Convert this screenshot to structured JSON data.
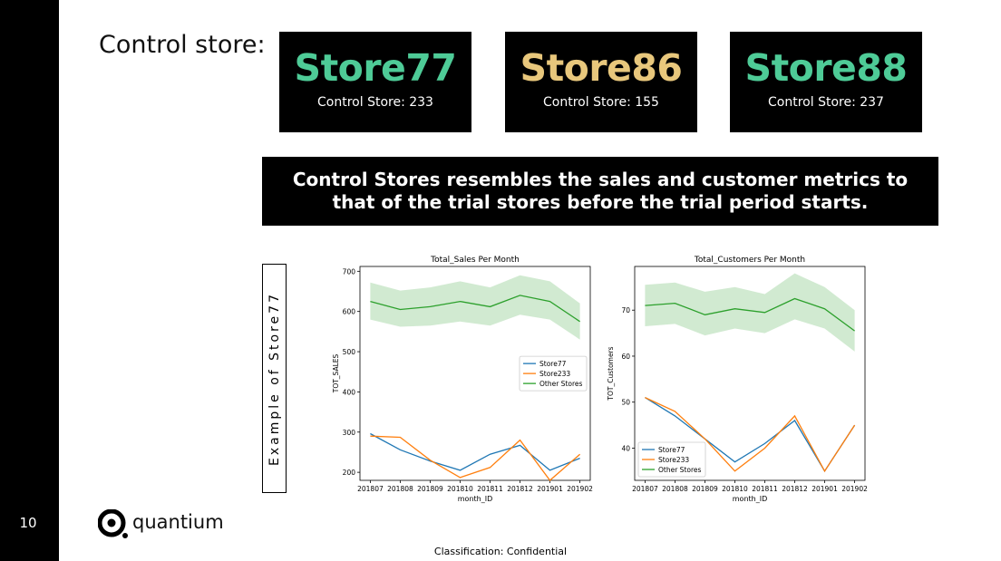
{
  "page_number": "10",
  "heading": "Control store:",
  "stores": [
    {
      "name": "Store77",
      "control": "Control Store: 233",
      "color": "#4ecb97"
    },
    {
      "name": "Store86",
      "control": "Control Store: 155",
      "color": "#e8c77c"
    },
    {
      "name": "Store88",
      "control": "Control Store: 237",
      "color": "#4ecb97"
    }
  ],
  "banner": "Control Stores resembles the sales and customer metrics to that of the trial stores before the trial period starts.",
  "side_label": "Example of Store77",
  "logo_text": "quantium",
  "footer": "Classification: Confidential",
  "chart_data": [
    {
      "type": "line",
      "title": "Total_Sales Per Month",
      "xlabel": "month_ID",
      "ylabel": "TOT_SALES",
      "categories": [
        "201807",
        "201808",
        "201809",
        "201810",
        "201811",
        "201812",
        "201901",
        "201902"
      ],
      "ylim": [
        180,
        712
      ],
      "yticks": [
        200,
        300,
        400,
        500,
        600,
        700
      ],
      "legend": "center-right",
      "series": [
        {
          "name": "Store77",
          "color": "#1f77b4",
          "values": [
            296,
            256,
            228,
            205,
            245,
            267,
            205,
            235
          ]
        },
        {
          "name": "Store233",
          "color": "#ff7f0e",
          "values": [
            290,
            287,
            230,
            187,
            212,
            280,
            180,
            245
          ]
        },
        {
          "name": "Other Stores",
          "color": "#2ca02c",
          "values": [
            625,
            605,
            612,
            625,
            612,
            640,
            625,
            575
          ],
          "band_upper": [
            672,
            652,
            660,
            675,
            660,
            690,
            675,
            620
          ],
          "band_lower": [
            580,
            562,
            565,
            575,
            565,
            592,
            580,
            530
          ]
        }
      ]
    },
    {
      "type": "line",
      "title": "Total_Customers Per Month",
      "xlabel": "month_ID",
      "ylabel": "TOT_Customers",
      "categories": [
        "201807",
        "201808",
        "201809",
        "201810",
        "201811",
        "201812",
        "201901",
        "201902"
      ],
      "ylim": [
        33,
        79.5
      ],
      "yticks": [
        40,
        50,
        60,
        70
      ],
      "legend": "lower-left",
      "series": [
        {
          "name": "Store77",
          "color": "#1f77b4",
          "values": [
            51,
            47,
            42,
            37,
            41,
            46,
            35,
            45
          ]
        },
        {
          "name": "Store233",
          "color": "#ff7f0e",
          "values": [
            51,
            48,
            42,
            35,
            40,
            47,
            35,
            45
          ]
        },
        {
          "name": "Other Stores",
          "color": "#2ca02c",
          "values": [
            71,
            71.5,
            69,
            70.3,
            69.5,
            72.5,
            70.3,
            65.5
          ],
          "band_upper": [
            75.5,
            76,
            74,
            75,
            73.5,
            78,
            75,
            70
          ],
          "band_lower": [
            66.5,
            67,
            64.5,
            66,
            65,
            68,
            66,
            61
          ]
        }
      ]
    }
  ]
}
